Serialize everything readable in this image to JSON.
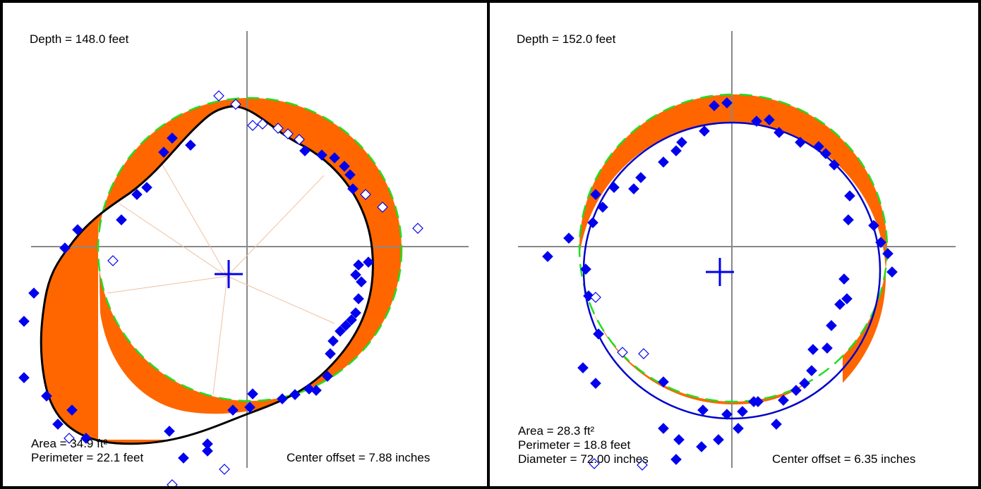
{
  "colors": {
    "axis": "#888888",
    "fill_ring": "#ff6600",
    "dashed_circle": "#22dd22",
    "point": "#0000ee",
    "center_marker": "#0000ee",
    "left_profile": "#000000",
    "right_profile": "#0000cc",
    "radial_lines": "#f0c0a0"
  },
  "left_panel": {
    "depth_label": "Depth = 148.0 feet",
    "area_label": "Area = 34.9 ft²",
    "perimeter_label": "Perimeter = 22.1 feet",
    "center_offset_label": "Center offset = 7.88 inches"
  },
  "right_panel": {
    "depth_label": "Depth = 152.0 feet",
    "area_label": "Area = 28.3 ft²",
    "perimeter_label": "Perimeter = 18.8 feet",
    "diameter_label": "Diameter = 72.00 inches",
    "center_offset_label": "Center offset = 6.35 inches"
  },
  "icons": {
    "center_marker": "plus-icon",
    "point_filled": "diamond-filled-icon",
    "point_open": "diamond-open-icon"
  }
}
